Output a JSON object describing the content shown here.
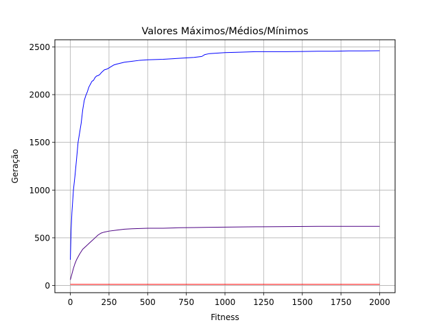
{
  "chart_data": {
    "type": "line",
    "title": "Valores Máximos/Médios/Mínimos",
    "xlabel": "Fitness",
    "ylabel": "Geração",
    "xlim": [
      -100,
      2100
    ],
    "ylim": [
      -75,
      2575
    ],
    "xticks": [
      0,
      250,
      500,
      750,
      1000,
      1250,
      1500,
      1750,
      2000
    ],
    "yticks": [
      0,
      500,
      1000,
      1500,
      2000,
      2500
    ],
    "xtick_labels": [
      "0",
      "250",
      "500",
      "750",
      "1000",
      "1250",
      "1500",
      "1750",
      "2000"
    ],
    "ytick_labels": [
      "0",
      "500",
      "1000",
      "1500",
      "2000",
      "2500"
    ],
    "grid": true,
    "legend": "none",
    "series": [
      {
        "color": "#0000ff",
        "x": [
          0,
          5,
          10,
          15,
          20,
          30,
          40,
          50,
          60,
          70,
          80,
          90,
          100,
          110,
          120,
          130,
          140,
          150,
          160,
          170,
          180,
          190,
          200,
          220,
          240,
          260,
          280,
          300,
          350,
          400,
          450,
          500,
          600,
          700,
          800,
          850,
          870,
          900,
          1000,
          1100,
          1200,
          1300,
          1400,
          1500,
          1600,
          1700,
          1800,
          1900,
          2000
        ],
        "y": [
          270,
          580,
          760,
          880,
          1000,
          1150,
          1320,
          1500,
          1600,
          1700,
          1840,
          1940,
          1990,
          2030,
          2080,
          2110,
          2140,
          2150,
          2180,
          2195,
          2200,
          2210,
          2230,
          2260,
          2270,
          2290,
          2310,
          2320,
          2340,
          2350,
          2360,
          2365,
          2370,
          2380,
          2390,
          2400,
          2420,
          2430,
          2440,
          2445,
          2450,
          2450,
          2450,
          2452,
          2455,
          2455,
          2458,
          2458,
          2460
        ]
      },
      {
        "color": "#4b0082",
        "x": [
          0,
          10,
          20,
          30,
          40,
          60,
          80,
          100,
          120,
          140,
          160,
          180,
          200,
          220,
          250,
          300,
          350,
          400,
          500,
          600,
          700,
          800,
          900,
          1000,
          1200,
          1400,
          1600,
          1800,
          2000
        ],
        "y": [
          60,
          120,
          180,
          230,
          270,
          330,
          380,
          410,
          440,
          470,
          500,
          530,
          550,
          560,
          570,
          580,
          590,
          595,
          600,
          600,
          605,
          607,
          610,
          612,
          615,
          617,
          620,
          620,
          620
        ]
      },
      {
        "color": "#ff0000",
        "x": [
          0,
          500,
          1000,
          1500,
          2000
        ],
        "y": [
          12,
          12,
          12,
          12,
          12
        ]
      }
    ]
  }
}
